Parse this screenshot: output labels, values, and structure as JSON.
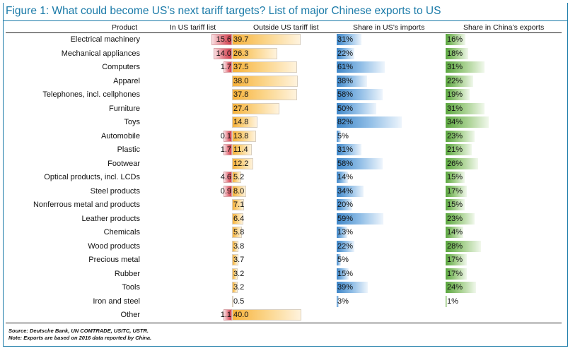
{
  "chart_data": {
    "type": "table",
    "title": "Figure 1: What could become US’s next tariff targets? List of major Chinese exports to US",
    "columns": [
      "Product",
      "In US tariff list",
      "Outside US tariff list",
      "Share in US’s imports",
      "Share in China’s exports"
    ],
    "rows": [
      {
        "product": "Electrical machinery",
        "in_list": "15.6",
        "outside": "39.7",
        "us_share": "31%",
        "cn_share": "16%"
      },
      {
        "product": "Mechanical appliances",
        "in_list": "14.0",
        "outside": "26.3",
        "us_share": "22%",
        "cn_share": "18%"
      },
      {
        "product": "Computers",
        "in_list": "1.7",
        "outside": "37.5",
        "us_share": "61%",
        "cn_share": "31%"
      },
      {
        "product": "Apparel",
        "in_list": "",
        "outside": "38.0",
        "us_share": "38%",
        "cn_share": "22%"
      },
      {
        "product": "Telephones, incl. cellphones",
        "in_list": "",
        "outside": "37.8",
        "us_share": "58%",
        "cn_share": "19%"
      },
      {
        "product": "Furniture",
        "in_list": "",
        "outside": "27.4",
        "us_share": "50%",
        "cn_share": "31%"
      },
      {
        "product": "Toys",
        "in_list": "",
        "outside": "14.8",
        "us_share": "82%",
        "cn_share": "34%"
      },
      {
        "product": "Automobile",
        "in_list": "0.1",
        "outside": "13.8",
        "us_share": "5%",
        "cn_share": "23%"
      },
      {
        "product": "Plastic",
        "in_list": "1.7",
        "outside": "11.4",
        "us_share": "31%",
        "cn_share": "21%"
      },
      {
        "product": "Footwear",
        "in_list": "",
        "outside": "12.2",
        "us_share": "58%",
        "cn_share": "26%"
      },
      {
        "product": "Optical products, incl. LCDs",
        "in_list": "4.6",
        "outside": "5.2",
        "us_share": "14%",
        "cn_share": "15%"
      },
      {
        "product": "Steel products",
        "in_list": "0.9",
        "outside": "8.0",
        "us_share": "34%",
        "cn_share": "17%"
      },
      {
        "product": "Nonferrous metal and products",
        "in_list": "",
        "outside": "7.1",
        "us_share": "20%",
        "cn_share": "15%"
      },
      {
        "product": "Leather products",
        "in_list": "",
        "outside": "6.4",
        "us_share": "59%",
        "cn_share": "23%"
      },
      {
        "product": "Chemicals",
        "in_list": "",
        "outside": "5.8",
        "us_share": "13%",
        "cn_share": "14%"
      },
      {
        "product": "Wood products",
        "in_list": "",
        "outside": "3.8",
        "us_share": "22%",
        "cn_share": "28%"
      },
      {
        "product": "Precious metal",
        "in_list": "",
        "outside": "3.7",
        "us_share": "5%",
        "cn_share": "17%"
      },
      {
        "product": "Rubber",
        "in_list": "",
        "outside": "3.2",
        "us_share": "15%",
        "cn_share": "17%"
      },
      {
        "product": "Tools",
        "in_list": "",
        "outside": "3.2",
        "us_share": "39%",
        "cn_share": "24%"
      },
      {
        "product": "Iron and steel",
        "in_list": "",
        "outside": "0.5",
        "us_share": "3%",
        "cn_share": "1%"
      },
      {
        "product": "Other",
        "in_list": "1.1",
        "outside": "40.0",
        "us_share": "",
        "cn_share": ""
      }
    ],
    "source": "Source: Deutsche Bank, UN COMTRADE, USITC, USTR.",
    "note": "Note: Exports are based on 2016 data reported by China."
  }
}
